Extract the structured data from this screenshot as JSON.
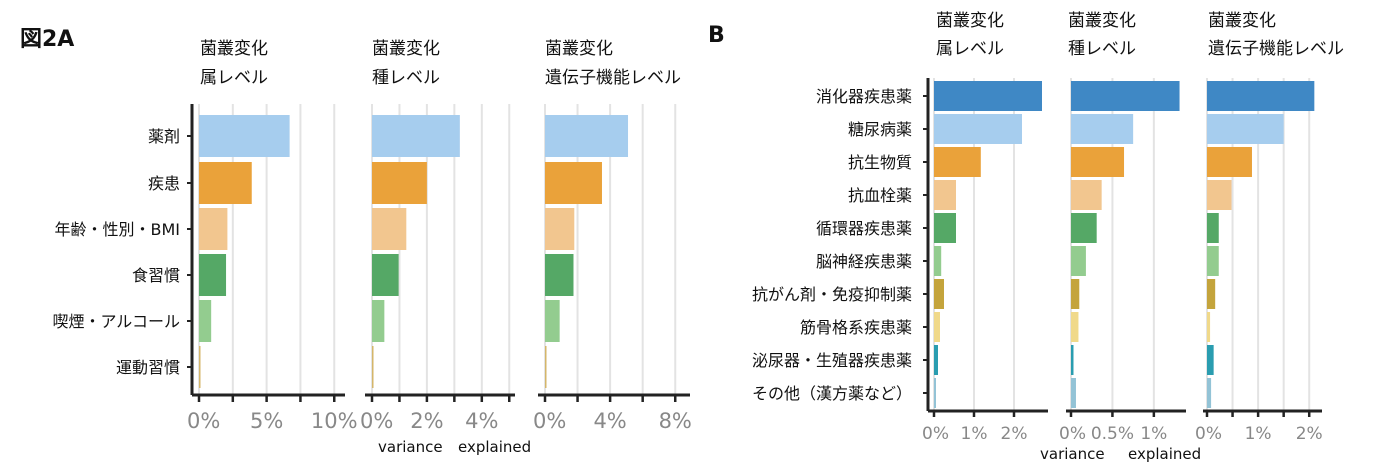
{
  "chart_data": [
    {
      "type": "bar",
      "orientation": "horizontal",
      "figure_label": "図2A",
      "categories": [
        "薬剤",
        "疾患",
        "年齢・性別・BMI",
        "食習慣",
        "喫煙・アルコール",
        "運動習慣"
      ],
      "colors": [
        "#a6cdee",
        "#eaa23a",
        "#f2c68f",
        "#55a866",
        "#93cc8f",
        "#d4b66a"
      ],
      "xlabel": [
        "variance",
        "explained"
      ],
      "panels": [
        {
          "title": [
            "菌叢変化",
            "属レベル"
          ],
          "xlim": [
            0,
            10.5
          ],
          "ticks": [
            0,
            5,
            10
          ],
          "tick_labels": [
            "0%",
            "5%",
            "10%"
          ],
          "grid": [
            0,
            2.5,
            5,
            7.5,
            10
          ],
          "values": [
            6.7,
            3.9,
            2.1,
            2.0,
            0.9,
            0.1
          ]
        },
        {
          "title": [
            "菌叢変化",
            "種レベル"
          ],
          "xlim": [
            0,
            5.1
          ],
          "ticks": [
            0,
            2,
            4
          ],
          "tick_labels": [
            "0%",
            "2%",
            "4%"
          ],
          "grid": [
            0,
            1,
            2,
            3,
            4,
            5
          ],
          "values": [
            3.2,
            2.0,
            1.25,
            0.97,
            0.45,
            0.05
          ]
        },
        {
          "title": [
            "菌叢変化",
            "遺伝子機能レベル"
          ],
          "xlim": [
            0,
            8.6
          ],
          "ticks": [
            0,
            4,
            8
          ],
          "tick_labels": [
            "0%",
            "4%",
            "8%"
          ],
          "grid": [
            0,
            2,
            4,
            6,
            8
          ],
          "values": [
            5.1,
            3.5,
            1.8,
            1.75,
            0.9,
            0.02
          ]
        }
      ]
    },
    {
      "type": "bar",
      "orientation": "horizontal",
      "figure_label": "B",
      "categories": [
        "消化器疾患薬",
        "糖尿病薬",
        "抗生物質",
        "抗血栓薬",
        "循環器疾患薬",
        "脳神経疾患薬",
        "抗がん剤・免疫抑制薬",
        "筋骨格系疾患薬",
        "泌尿器・生殖器疾患薬",
        "その他（漢方薬など）"
      ],
      "colors": [
        "#3f88c5",
        "#a6cdee",
        "#eaa23a",
        "#f2c68f",
        "#55a866",
        "#93cc8f",
        "#c4a43c",
        "#f0d98a",
        "#2a9db0",
        "#93c3d6"
      ],
      "xlabel": [
        "variance",
        "explained"
      ],
      "panels": [
        {
          "title": [
            "菌叢変化",
            "属レベル"
          ],
          "xlim": [
            0,
            2.85
          ],
          "ticks": [
            0,
            1,
            2
          ],
          "tick_labels": [
            "0%",
            "1%",
            "2%"
          ],
          "grid": [
            0,
            1,
            2
          ],
          "values": [
            2.7,
            2.2,
            1.17,
            0.55,
            0.55,
            0.18,
            0.25,
            0.15,
            0.1,
            0.05
          ]
        },
        {
          "title": [
            "菌叢変化",
            "種レベル"
          ],
          "xlim": [
            0,
            1.4
          ],
          "ticks": [
            0,
            0.5,
            1
          ],
          "tick_labels": [
            "0%",
            "0.5%",
            "1%"
          ],
          "grid": [
            0,
            0.5,
            1
          ],
          "values": [
            1.31,
            0.75,
            0.64,
            0.37,
            0.31,
            0.18,
            0.1,
            0.09,
            0.03,
            0.06
          ]
        },
        {
          "title": [
            "菌叢変化",
            "遺伝子機能レベル"
          ],
          "xlim": [
            0,
            2.25
          ],
          "ticks": [
            0,
            1,
            2
          ],
          "tick_labels": [
            "0%",
            "1%",
            "2%"
          ],
          "grid": [
            0,
            0.5,
            1,
            1.5,
            2
          ],
          "values": [
            2.1,
            1.5,
            0.88,
            0.48,
            0.23,
            0.23,
            0.16,
            0.06,
            0.13,
            0.08
          ]
        }
      ]
    }
  ]
}
